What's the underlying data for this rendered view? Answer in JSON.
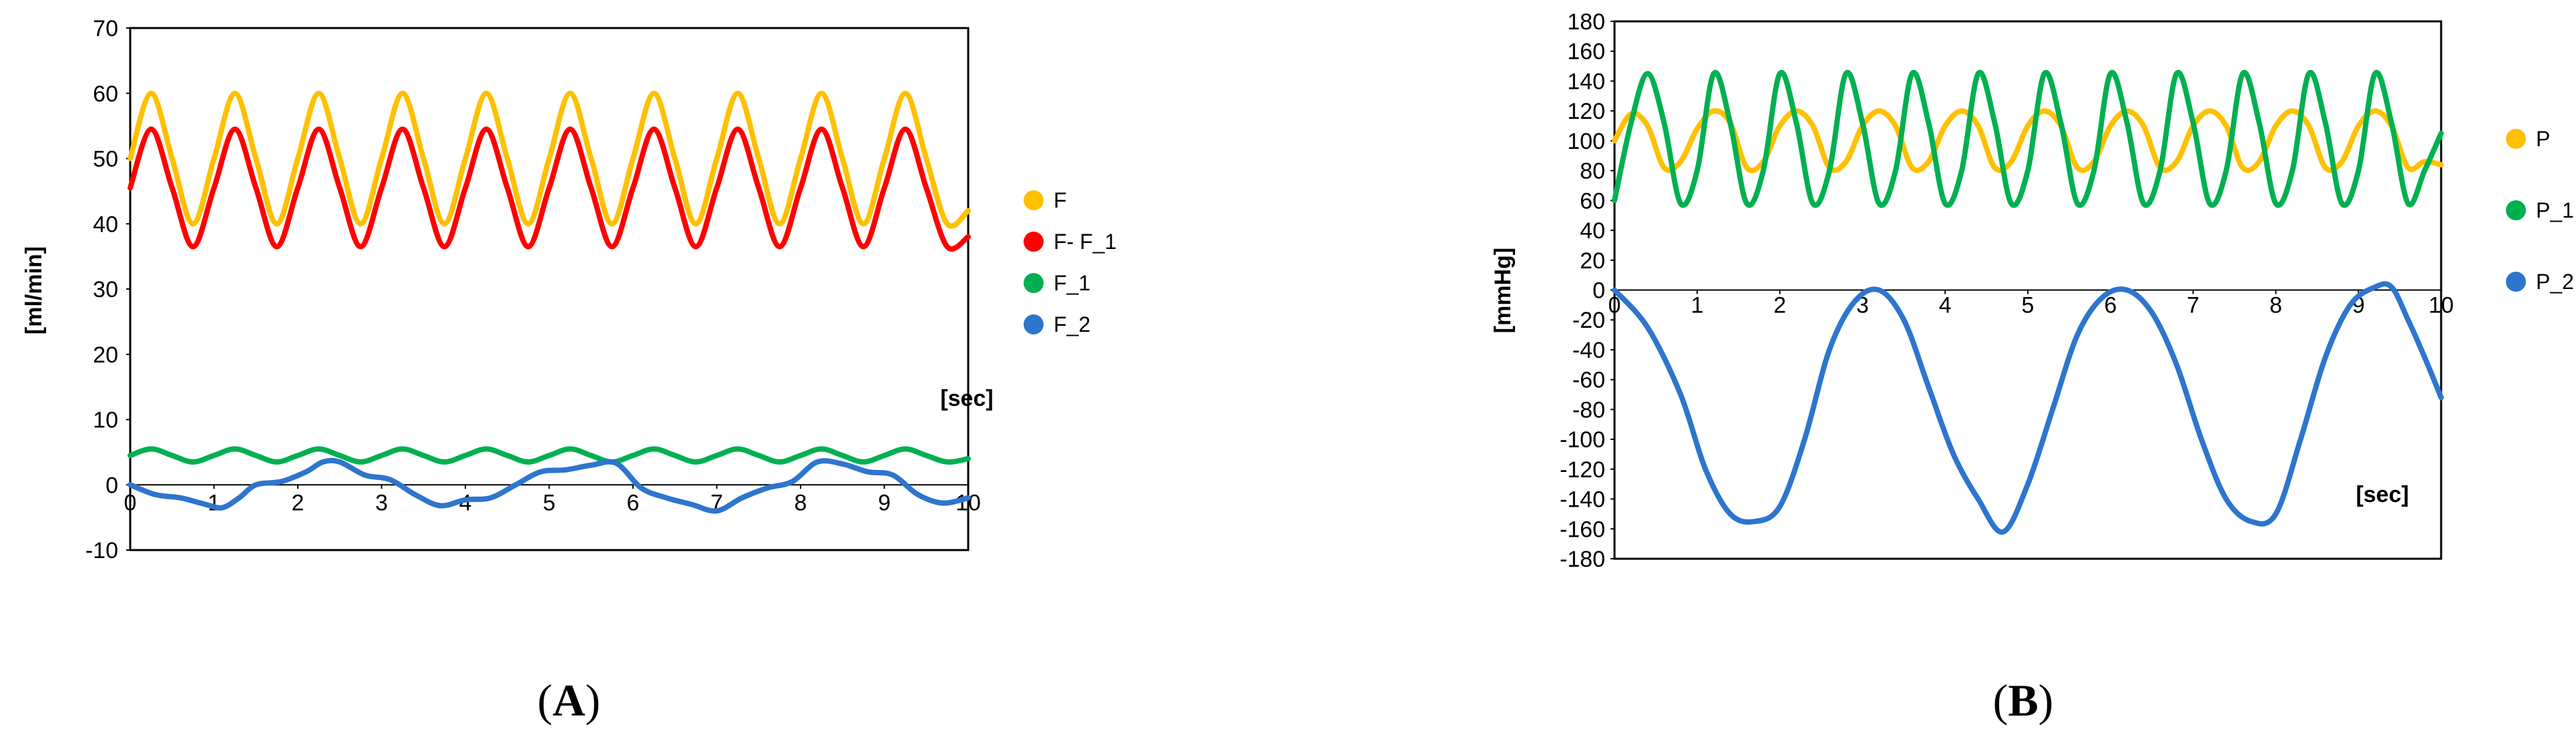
{
  "panels": [
    {
      "prefix": "(",
      "letter": "A",
      "suffix": ")"
    },
    {
      "prefix": "(",
      "letter": "B",
      "suffix": ")"
    }
  ],
  "chart_data": [
    {
      "type": "line",
      "ylabel": "[ml/min]",
      "xlabel": "[sec]",
      "xlim": [
        0,
        10
      ],
      "ylim": [
        -10,
        70
      ],
      "xticks": [
        "0",
        "1",
        "2",
        "3",
        "4",
        "5",
        "6",
        "7",
        "8",
        "9",
        "10"
      ],
      "yticks": [
        "-10",
        "0",
        "10",
        "20",
        "30",
        "40",
        "50",
        "60",
        "70"
      ],
      "grid": false,
      "legend_position": "right",
      "series": [
        {
          "name": "F",
          "color": "#FFC000",
          "x": [
            0,
            0.25,
            0.5,
            0.75,
            1,
            1.25,
            1.5,
            1.75,
            2,
            2.25,
            2.5,
            2.75,
            3,
            3.25,
            3.5,
            3.75,
            4,
            4.25,
            4.5,
            4.75,
            5,
            5.25,
            5.5,
            5.75,
            6,
            6.25,
            6.5,
            6.75,
            7,
            7.25,
            7.5,
            7.75,
            8,
            8.25,
            8.5,
            8.75,
            9,
            9.25,
            9.5,
            9.75,
            10
          ],
          "y": [
            50,
            60,
            50,
            40,
            50,
            60,
            50,
            40,
            50,
            60,
            50,
            40,
            50,
            60,
            50,
            40,
            50,
            60,
            50,
            40,
            50,
            60,
            50,
            40,
            50,
            60,
            50,
            40,
            50,
            60,
            50,
            40,
            50,
            60,
            50,
            40,
            50,
            60,
            50,
            40,
            42
          ]
        },
        {
          "name": "F- F_1",
          "color": "#FF0000",
          "x": [
            0,
            0.25,
            0.5,
            0.75,
            1,
            1.25,
            1.5,
            1.75,
            2,
            2.25,
            2.5,
            2.75,
            3,
            3.25,
            3.5,
            3.75,
            4,
            4.25,
            4.5,
            4.75,
            5,
            5.25,
            5.5,
            5.75,
            6,
            6.25,
            6.5,
            6.75,
            7,
            7.25,
            7.5,
            7.75,
            8,
            8.25,
            8.5,
            8.75,
            9,
            9.25,
            9.5,
            9.75,
            10
          ],
          "y": [
            45.5,
            54.5,
            45.5,
            36.5,
            45.5,
            54.5,
            45.5,
            36.5,
            45.5,
            54.5,
            45.5,
            36.5,
            45.5,
            54.5,
            45.5,
            36.5,
            45.5,
            54.5,
            45.5,
            36.5,
            45.5,
            54.5,
            45.5,
            36.5,
            45.5,
            54.5,
            45.5,
            36.5,
            45.5,
            54.5,
            45.5,
            36.5,
            45.5,
            54.5,
            45.5,
            36.5,
            45.5,
            54.5,
            45.5,
            36.5,
            38
          ]
        },
        {
          "name": "F_1",
          "color": "#00B050",
          "x": [
            0,
            0.25,
            0.5,
            0.75,
            1,
            1.25,
            1.5,
            1.75,
            2,
            2.25,
            2.5,
            2.75,
            3,
            3.25,
            3.5,
            3.75,
            4,
            4.25,
            4.5,
            4.75,
            5,
            5.25,
            5.5,
            5.75,
            6,
            6.25,
            6.5,
            6.75,
            7,
            7.25,
            7.5,
            7.75,
            8,
            8.25,
            8.5,
            8.75,
            9,
            9.25,
            9.5,
            9.75,
            10
          ],
          "y": [
            4.5,
            5.5,
            4.5,
            3.5,
            4.5,
            5.5,
            4.5,
            3.5,
            4.5,
            5.5,
            4.5,
            3.5,
            4.5,
            5.5,
            4.5,
            3.5,
            4.5,
            5.5,
            4.5,
            3.5,
            4.5,
            5.5,
            4.5,
            3.5,
            4.5,
            5.5,
            4.5,
            3.5,
            4.5,
            5.5,
            4.5,
            3.5,
            4.5,
            5.5,
            4.5,
            3.5,
            4.5,
            5.5,
            4.5,
            3.5,
            4
          ]
        },
        {
          "name": "F_2",
          "color": "#2E75CE",
          "x": [
            0,
            0.3,
            0.6,
            0.9,
            1.1,
            1.3,
            1.5,
            1.8,
            2.1,
            2.3,
            2.5,
            2.8,
            3.1,
            3.4,
            3.7,
            4,
            4.3,
            4.6,
            4.9,
            5.2,
            5.5,
            5.8,
            6.1,
            6.4,
            6.7,
            7,
            7.3,
            7.6,
            7.9,
            8.2,
            8.5,
            8.8,
            9.1,
            9.4,
            9.7,
            10
          ],
          "y": [
            0,
            -1.5,
            -2,
            -3,
            -3.5,
            -2,
            0,
            0.5,
            2,
            3.5,
            3.5,
            1.5,
            0.8,
            -1.5,
            -3.2,
            -2.3,
            -2,
            0,
            2,
            2.3,
            3,
            3.3,
            -0.5,
            -2,
            -3,
            -4,
            -2,
            -0.5,
            0.5,
            3.5,
            3.2,
            2,
            1.5,
            -1.5,
            -2.8,
            -2
          ]
        }
      ]
    },
    {
      "type": "line",
      "ylabel": "[mmHg]",
      "xlabel": "[sec]",
      "xlim": [
        0,
        10
      ],
      "ylim": [
        -180,
        180
      ],
      "xticks": [
        "0",
        "1",
        "2",
        "3",
        "4",
        "5",
        "6",
        "7",
        "8",
        "9",
        "10"
      ],
      "yticks": [
        "180",
        "160",
        "140",
        "120",
        "100",
        "80",
        "60",
        "40",
        "20",
        "0",
        "-20",
        "-40",
        "-60",
        "-80",
        "-100",
        "-120",
        "-140",
        "-160",
        "-180"
      ],
      "grid": false,
      "legend_position": "right",
      "series": [
        {
          "name": "P",
          "color": "#FFC000",
          "x": [
            0,
            0.2,
            0.4,
            0.6,
            0.8,
            1,
            1.2,
            1.4,
            1.6,
            1.8,
            2,
            2.2,
            2.4,
            2.6,
            2.8,
            3,
            3.2,
            3.4,
            3.6,
            3.8,
            4,
            4.2,
            4.4,
            4.6,
            4.8,
            5,
            5.2,
            5.4,
            5.6,
            5.8,
            6,
            6.2,
            6.4,
            6.6,
            6.8,
            7,
            7.2,
            7.4,
            7.6,
            7.8,
            8,
            8.2,
            8.4,
            8.6,
            8.8,
            9,
            9.2,
            9.4,
            9.6,
            9.8,
            10
          ],
          "y": [
            100,
            118,
            110,
            82,
            86,
            108,
            120,
            112,
            82,
            86,
            110,
            120,
            110,
            82,
            86,
            110,
            120,
            110,
            82,
            86,
            110,
            120,
            110,
            82,
            86,
            110,
            120,
            110,
            82,
            86,
            110,
            120,
            110,
            82,
            86,
            110,
            120,
            110,
            82,
            86,
            110,
            120,
            110,
            82,
            86,
            110,
            120,
            110,
            82,
            86,
            84
          ]
        },
        {
          "name": "P_1",
          "color": "#00B050",
          "x": [
            0,
            0.2,
            0.4,
            0.6,
            0.8,
            1,
            1.2,
            1.4,
            1.6,
            1.8,
            2,
            2.2,
            2.4,
            2.6,
            2.8,
            3,
            3.2,
            3.4,
            3.6,
            3.8,
            4,
            4.2,
            4.4,
            4.6,
            4.8,
            5,
            5.2,
            5.4,
            5.6,
            5.8,
            6,
            6.2,
            6.4,
            6.6,
            6.8,
            7,
            7.2,
            7.4,
            7.6,
            7.8,
            8,
            8.2,
            8.4,
            8.6,
            8.8,
            9,
            9.2,
            9.4,
            9.6,
            9.8,
            10
          ],
          "y": [
            60,
            112,
            145,
            112,
            58,
            80,
            145,
            112,
            58,
            80,
            145,
            112,
            58,
            80,
            145,
            112,
            58,
            80,
            145,
            112,
            58,
            80,
            145,
            112,
            58,
            80,
            145,
            112,
            58,
            80,
            145,
            112,
            58,
            80,
            145,
            112,
            58,
            80,
            145,
            112,
            58,
            80,
            145,
            112,
            58,
            80,
            145,
            112,
            58,
            80,
            105
          ]
        },
        {
          "name": "P_2",
          "color": "#2E75CE",
          "x": [
            0,
            0.4,
            0.8,
            1.1,
            1.4,
            1.7,
            2,
            2.3,
            2.6,
            2.9,
            3.2,
            3.5,
            3.8,
            4.1,
            4.4,
            4.7,
            5,
            5.3,
            5.6,
            5.9,
            6.2,
            6.5,
            6.8,
            7.1,
            7.4,
            7.7,
            8,
            8.3,
            8.6,
            8.9,
            9.2,
            9.4,
            9.6,
            9.8,
            10
          ],
          "y": [
            0,
            -25,
            -70,
            -120,
            -150,
            -155,
            -145,
            -100,
            -40,
            -8,
            0,
            -20,
            -65,
            -110,
            -140,
            -162,
            -130,
            -80,
            -30,
            -5,
            0,
            -15,
            -50,
            -100,
            -140,
            -155,
            -150,
            -100,
            -45,
            -10,
            2,
            2,
            -20,
            -45,
            -72
          ]
        }
      ]
    }
  ]
}
